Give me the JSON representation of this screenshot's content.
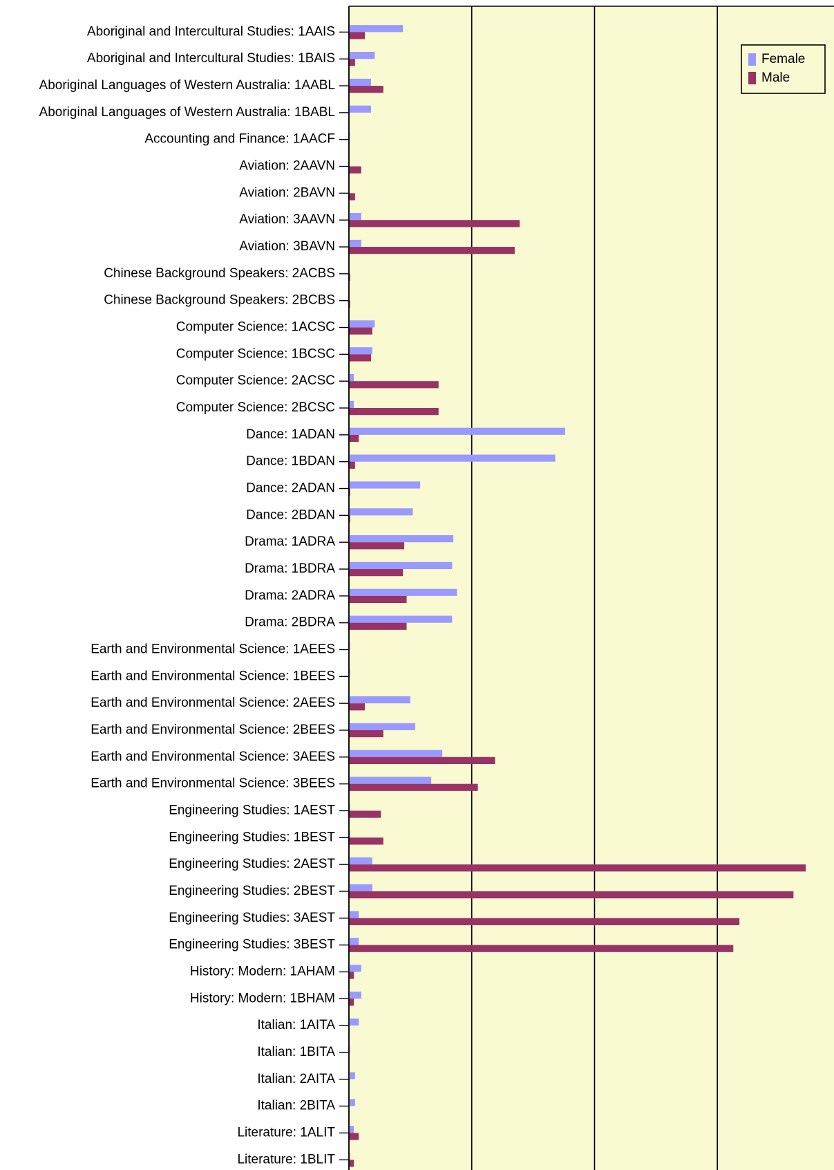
{
  "chart_data": {
    "type": "hbar",
    "categories": [
      "Aboriginal and Intercultural Studies: 1AAIS",
      "Aboriginal and Intercultural Studies: 1BAIS",
      "Aboriginal Languages of Western Australia: 1AABL",
      "Aboriginal Languages of Western Australia: 1BABL",
      "Accounting and Finance: 1AACF",
      "Aviation: 2AAVN",
      "Aviation: 2BAVN",
      "Aviation: 3AAVN",
      "Aviation: 3BAVN",
      "Chinese Background Speakers: 2ACBS",
      "Chinese Background Speakers: 2BCBS",
      "Computer Science: 1ACSC",
      "Computer Science: 1BCSC",
      "Computer Science: 2ACSC",
      "Computer Science: 2BCSC",
      "Dance: 1ADAN",
      "Dance: 1BDAN",
      "Dance: 2ADAN",
      "Dance: 2BDAN",
      "Drama: 1ADRA",
      "Drama: 1BDRA",
      "Drama: 2ADRA",
      "Drama: 2BDRA",
      "Earth and Environmental Science: 1AEES",
      "Earth and Environmental Science: 1BEES",
      "Earth and Environmental Science: 2AEES",
      "Earth and Environmental Science: 2BEES",
      "Earth and Environmental Science: 3AEES",
      "Earth and Environmental Science: 3BEES",
      "Engineering Studies: 1AEST",
      "Engineering Studies: 1BEST",
      "Engineering Studies: 2AEST",
      "Engineering Studies: 2BEST",
      "Engineering Studies: 3AEST",
      "Engineering Studies: 3BEST",
      "History: Modern: 1AHAM",
      "History: Modern: 1BHAM",
      "Italian: 1AITA",
      "Italian: 1BITA",
      "Italian: 2AITA",
      "Italian: 2BITA",
      "Literature: 1ALIT",
      "Literature: 1BLIT"
    ],
    "series": [
      {
        "name": "Female",
        "color": "#9999ff",
        "values": [
          44,
          21,
          18,
          18,
          1,
          0,
          0,
          10,
          10,
          0,
          0,
          21,
          19,
          4,
          4,
          176,
          168,
          58,
          52,
          85,
          84,
          88,
          84,
          1,
          1,
          50,
          54,
          76,
          67,
          1,
          1,
          19,
          19,
          8,
          8,
          10,
          10,
          8,
          1,
          5,
          5,
          4,
          1
        ]
      },
      {
        "name": "Male",
        "color": "#993366",
        "values": [
          13,
          5,
          28,
          0,
          0,
          10,
          5,
          139,
          135,
          1,
          1,
          19,
          18,
          73,
          73,
          8,
          5,
          1,
          1,
          45,
          44,
          47,
          47,
          0,
          0,
          13,
          28,
          119,
          105,
          26,
          28,
          372,
          362,
          318,
          313,
          4,
          4,
          0,
          0,
          0,
          0,
          8,
          4
        ]
      }
    ],
    "xlim": [
      0,
      395
    ],
    "xticks": [
      0,
      100,
      200,
      300
    ],
    "grid": true,
    "legend": "top-right",
    "background": "#f9f9d2"
  }
}
